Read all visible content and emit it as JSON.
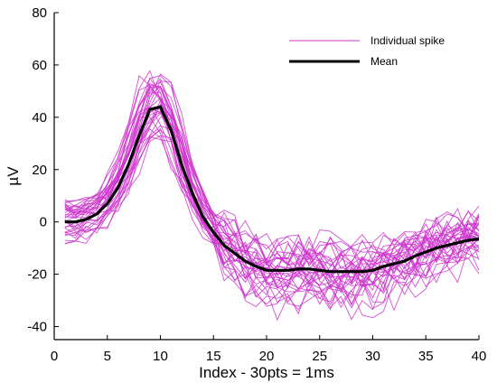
{
  "chart_data": {
    "type": "line",
    "xlabel": "Index - 30pts = 1ms",
    "ylabel": "µV",
    "xlim": [
      0,
      40
    ],
    "ylim": [
      -45,
      80
    ],
    "xticks": [
      0,
      5,
      10,
      15,
      20,
      25,
      30,
      35,
      40
    ],
    "yticks": [
      -40,
      -20,
      0,
      20,
      40,
      60,
      80
    ],
    "grid": false,
    "legend_position": "top-right",
    "legend": [
      "Individual spike",
      "Mean"
    ],
    "x": [
      1,
      2,
      3,
      4,
      5,
      6,
      7,
      8,
      9,
      10,
      11,
      12,
      13,
      14,
      15,
      16,
      17,
      18,
      19,
      20,
      21,
      22,
      23,
      24,
      25,
      26,
      27,
      28,
      29,
      30,
      31,
      32,
      33,
      34,
      35,
      36,
      37,
      38,
      39,
      40
    ],
    "series": [
      {
        "name": "Mean",
        "color": "#000000",
        "values": [
          0,
          0,
          1,
          3,
          7,
          13,
          22,
          33,
          43,
          44,
          35,
          22,
          11,
          2,
          -4,
          -9,
          -12,
          -15,
          -17,
          -18.5,
          -18.5,
          -18.5,
          -18,
          -18,
          -18.5,
          -19,
          -19,
          -19,
          -19,
          -18.5,
          -17,
          -16,
          -15,
          -13,
          -11.5,
          -10,
          -9,
          -8,
          -7,
          -6.5
        ]
      }
    ],
    "individual_spikes": {
      "name": "Individual spike",
      "color": "#cc33cc",
      "count": 34,
      "approx_peak_range": [
        33,
        60
      ],
      "approx_trough_range": [
        -43,
        -8
      ]
    }
  },
  "colors": {
    "individual": "#cc33cc",
    "mean": "#000000"
  }
}
